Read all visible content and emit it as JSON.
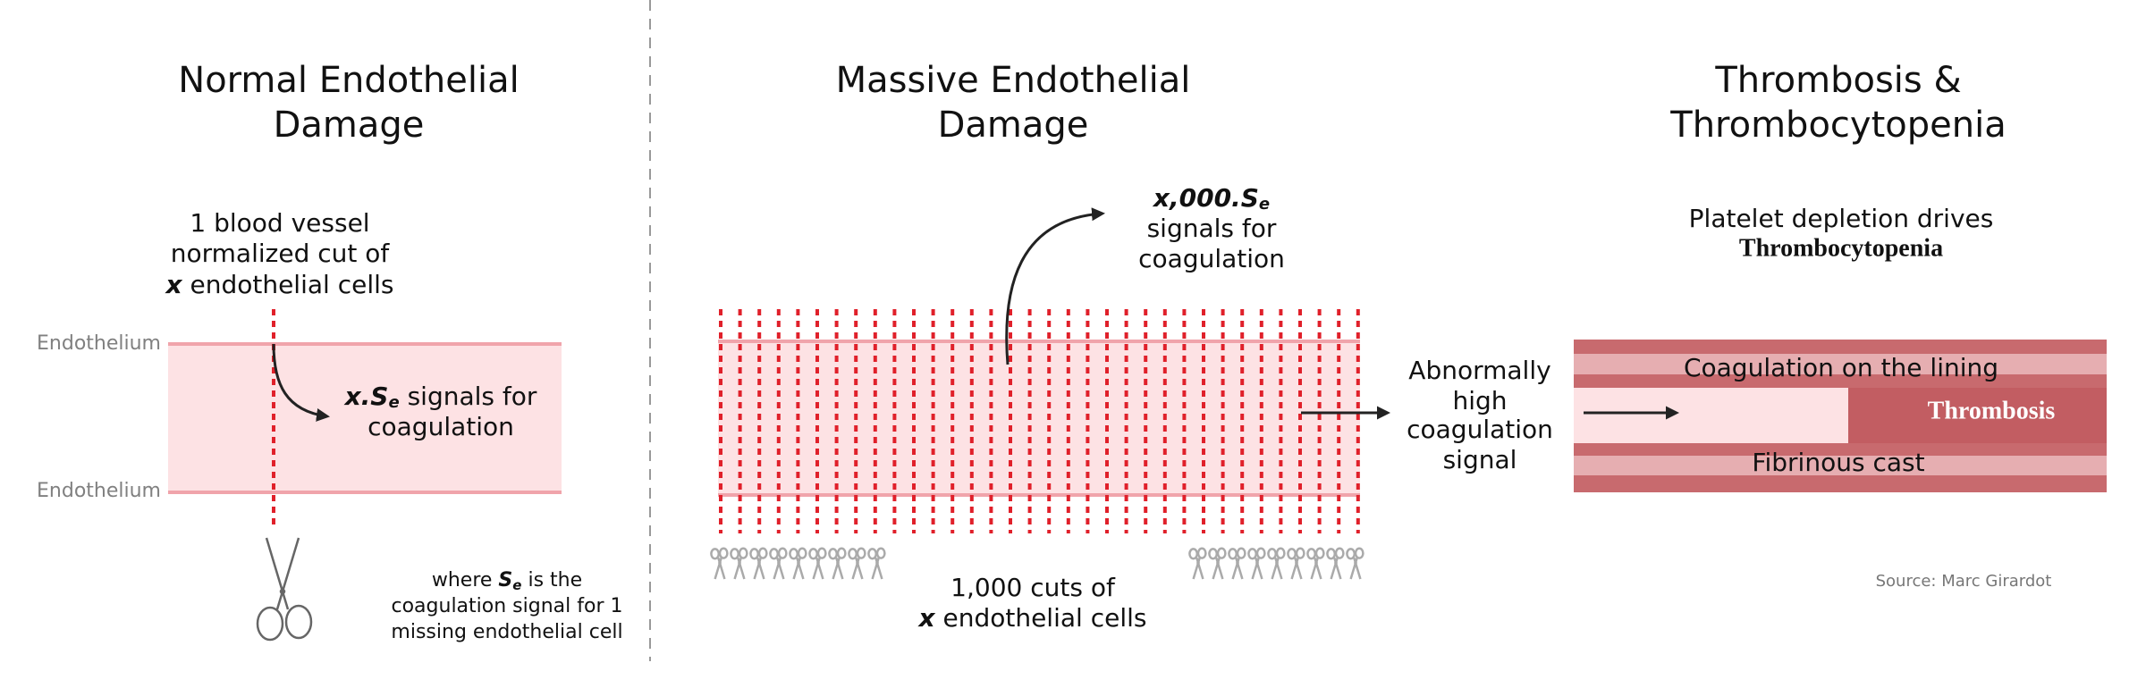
{
  "normal": {
    "title": [
      "Normal Endothelial",
      "Damage"
    ],
    "label_top": "Endothelium",
    "label_bottom": "Endothelium",
    "cut_text": [
      "1 blood vessel",
      "normalized cut of"
    ],
    "cut_var": "x",
    "cut_rest": " endothelial cells",
    "signal_var": "x.S",
    "signal_sub": "e",
    "signal_rest": " signals for",
    "signal_line2": "coagulation",
    "footnote_pre": "where ",
    "footnote_var": "S",
    "footnote_sub": "e",
    "footnote_rest": " is the",
    "footnote_lines": [
      "coagulation signal for 1",
      "missing endothelial cell"
    ]
  },
  "massive": {
    "title": [
      "Massive Endothelial",
      "Damage"
    ],
    "signal_var": "x",
    "signal_num": ",000.S",
    "signal_sub": "e",
    "signal_lines": [
      "signals for",
      "coagulation"
    ],
    "cuts_text": "1,000 cuts of",
    "cuts_var": "x",
    "cuts_rest": " endothelial cells",
    "outcome": [
      "Abnormally",
      "high",
      "coagulation",
      "signal"
    ]
  },
  "thrombosis": {
    "title": [
      "Thrombosis &",
      "Thrombocytopenia"
    ],
    "caption": "Platelet depletion drives",
    "caption_bold": "Thrombocytopenia",
    "lining": "Coagulation on the lining",
    "cast": "Fibrinous cast",
    "clot": "Thrombosis"
  },
  "source": "Source: Marc Girardot"
}
